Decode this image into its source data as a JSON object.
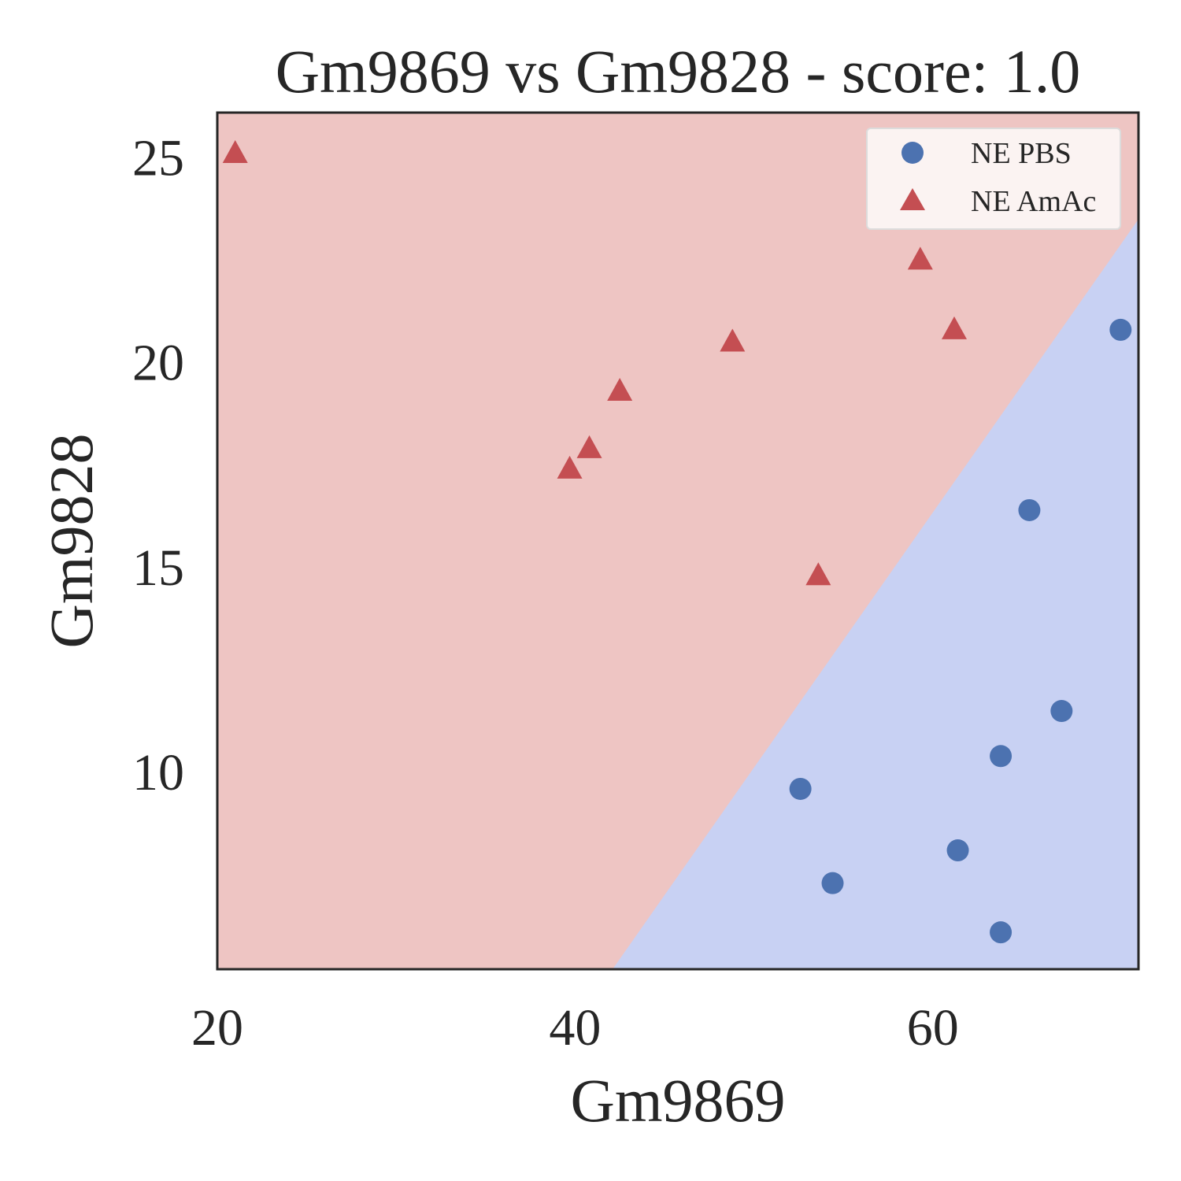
{
  "chart_data": {
    "type": "scatter",
    "title": "Gm9869 vs Gm9828 - score: 1.0",
    "xlabel": "Gm9869",
    "ylabel": "Gm9828",
    "xlim": [
      20,
      71.5
    ],
    "ylim": [
      5.2,
      26.1
    ],
    "xticks": [
      20,
      40,
      60
    ],
    "yticks": [
      10,
      15,
      20,
      25
    ],
    "grid": false,
    "legend_position": "top-right",
    "decision_boundary": {
      "from": [
        42.1,
        5.2
      ],
      "to": [
        71.5,
        23.5
      ],
      "region_above_color": "#eec5c3",
      "region_below_color": "#c8d1f3",
      "region_above_class": "NE AmAc",
      "region_below_class": "NE PBS"
    },
    "series": [
      {
        "name": "NE PBS",
        "marker": "circle",
        "color": "#4c72b0",
        "points": [
          [
            70.5,
            20.8
          ],
          [
            65.4,
            16.4
          ],
          [
            67.2,
            11.5
          ],
          [
            63.8,
            10.4
          ],
          [
            52.6,
            9.6
          ],
          [
            61.4,
            8.1
          ],
          [
            54.4,
            7.3
          ],
          [
            63.8,
            6.1
          ]
        ]
      },
      {
        "name": "NE AmAc",
        "marker": "triangle",
        "color": "#c44e52",
        "points": [
          [
            21.0,
            25.1
          ],
          [
            59.3,
            22.5
          ],
          [
            61.2,
            20.8
          ],
          [
            48.8,
            20.5
          ],
          [
            42.5,
            19.3
          ],
          [
            40.8,
            17.9
          ],
          [
            39.7,
            17.4
          ],
          [
            53.6,
            14.8
          ]
        ]
      }
    ]
  }
}
